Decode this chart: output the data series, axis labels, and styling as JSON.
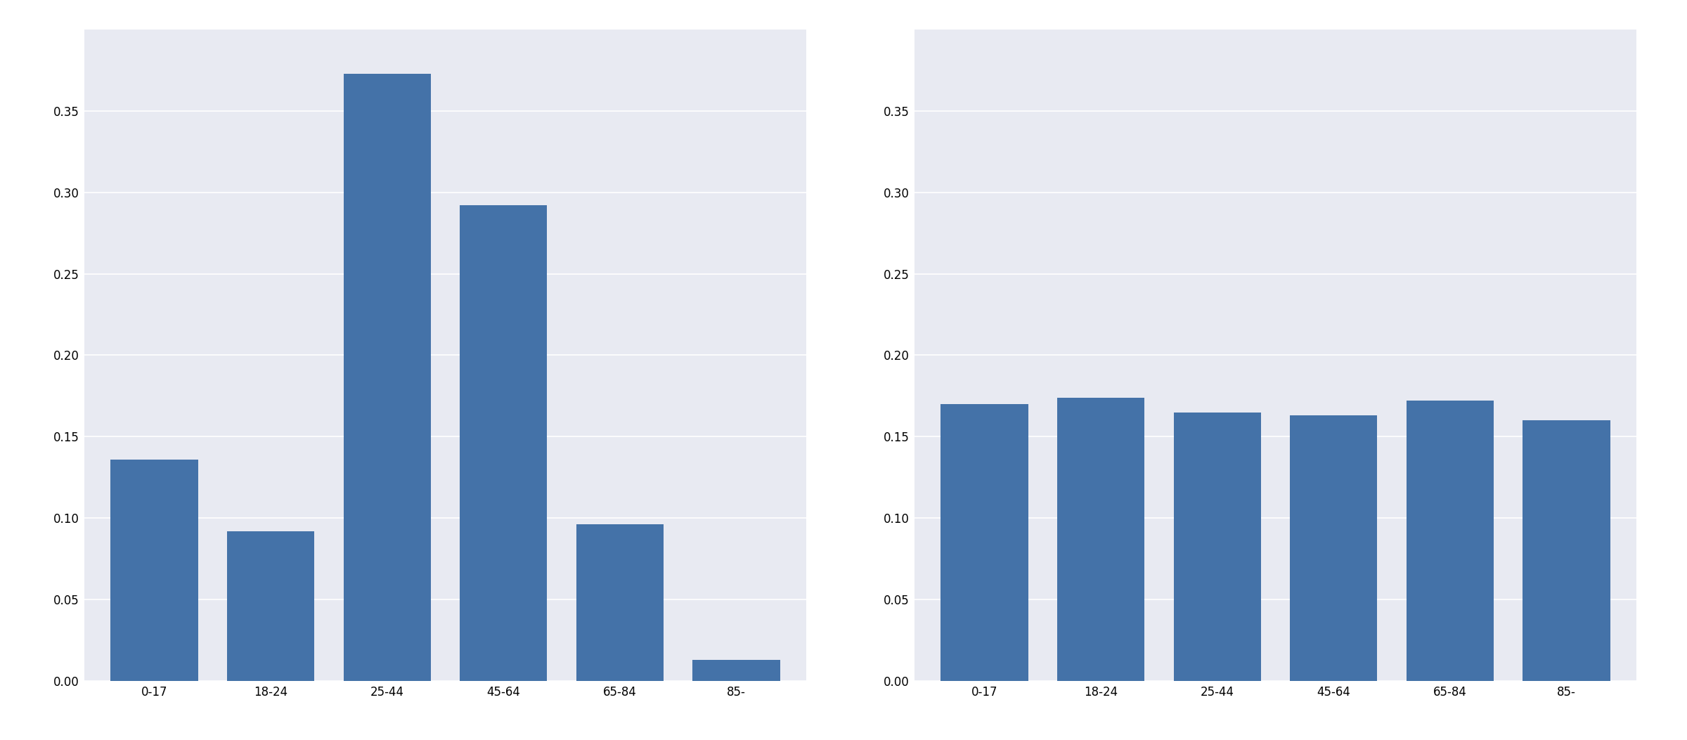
{
  "categories": [
    "0-17",
    "18-24",
    "25-44",
    "45-64",
    "65-84",
    "85-"
  ],
  "left_values": [
    0.136,
    0.092,
    0.373,
    0.292,
    0.096,
    0.013
  ],
  "right_values": [
    0.17,
    0.174,
    0.165,
    0.163,
    0.172,
    0.16
  ],
  "bar_color": "#4472a8",
  "bg_color": "#e8eaf2",
  "fig_bg_color": "#ffffff",
  "ylim": [
    0.0,
    0.4
  ],
  "yticks": [
    0.0,
    0.05,
    0.1,
    0.15,
    0.2,
    0.25,
    0.3,
    0.35
  ],
  "grid_color": "#ffffff",
  "bar_width": 0.75,
  "tick_fontsize": 12
}
